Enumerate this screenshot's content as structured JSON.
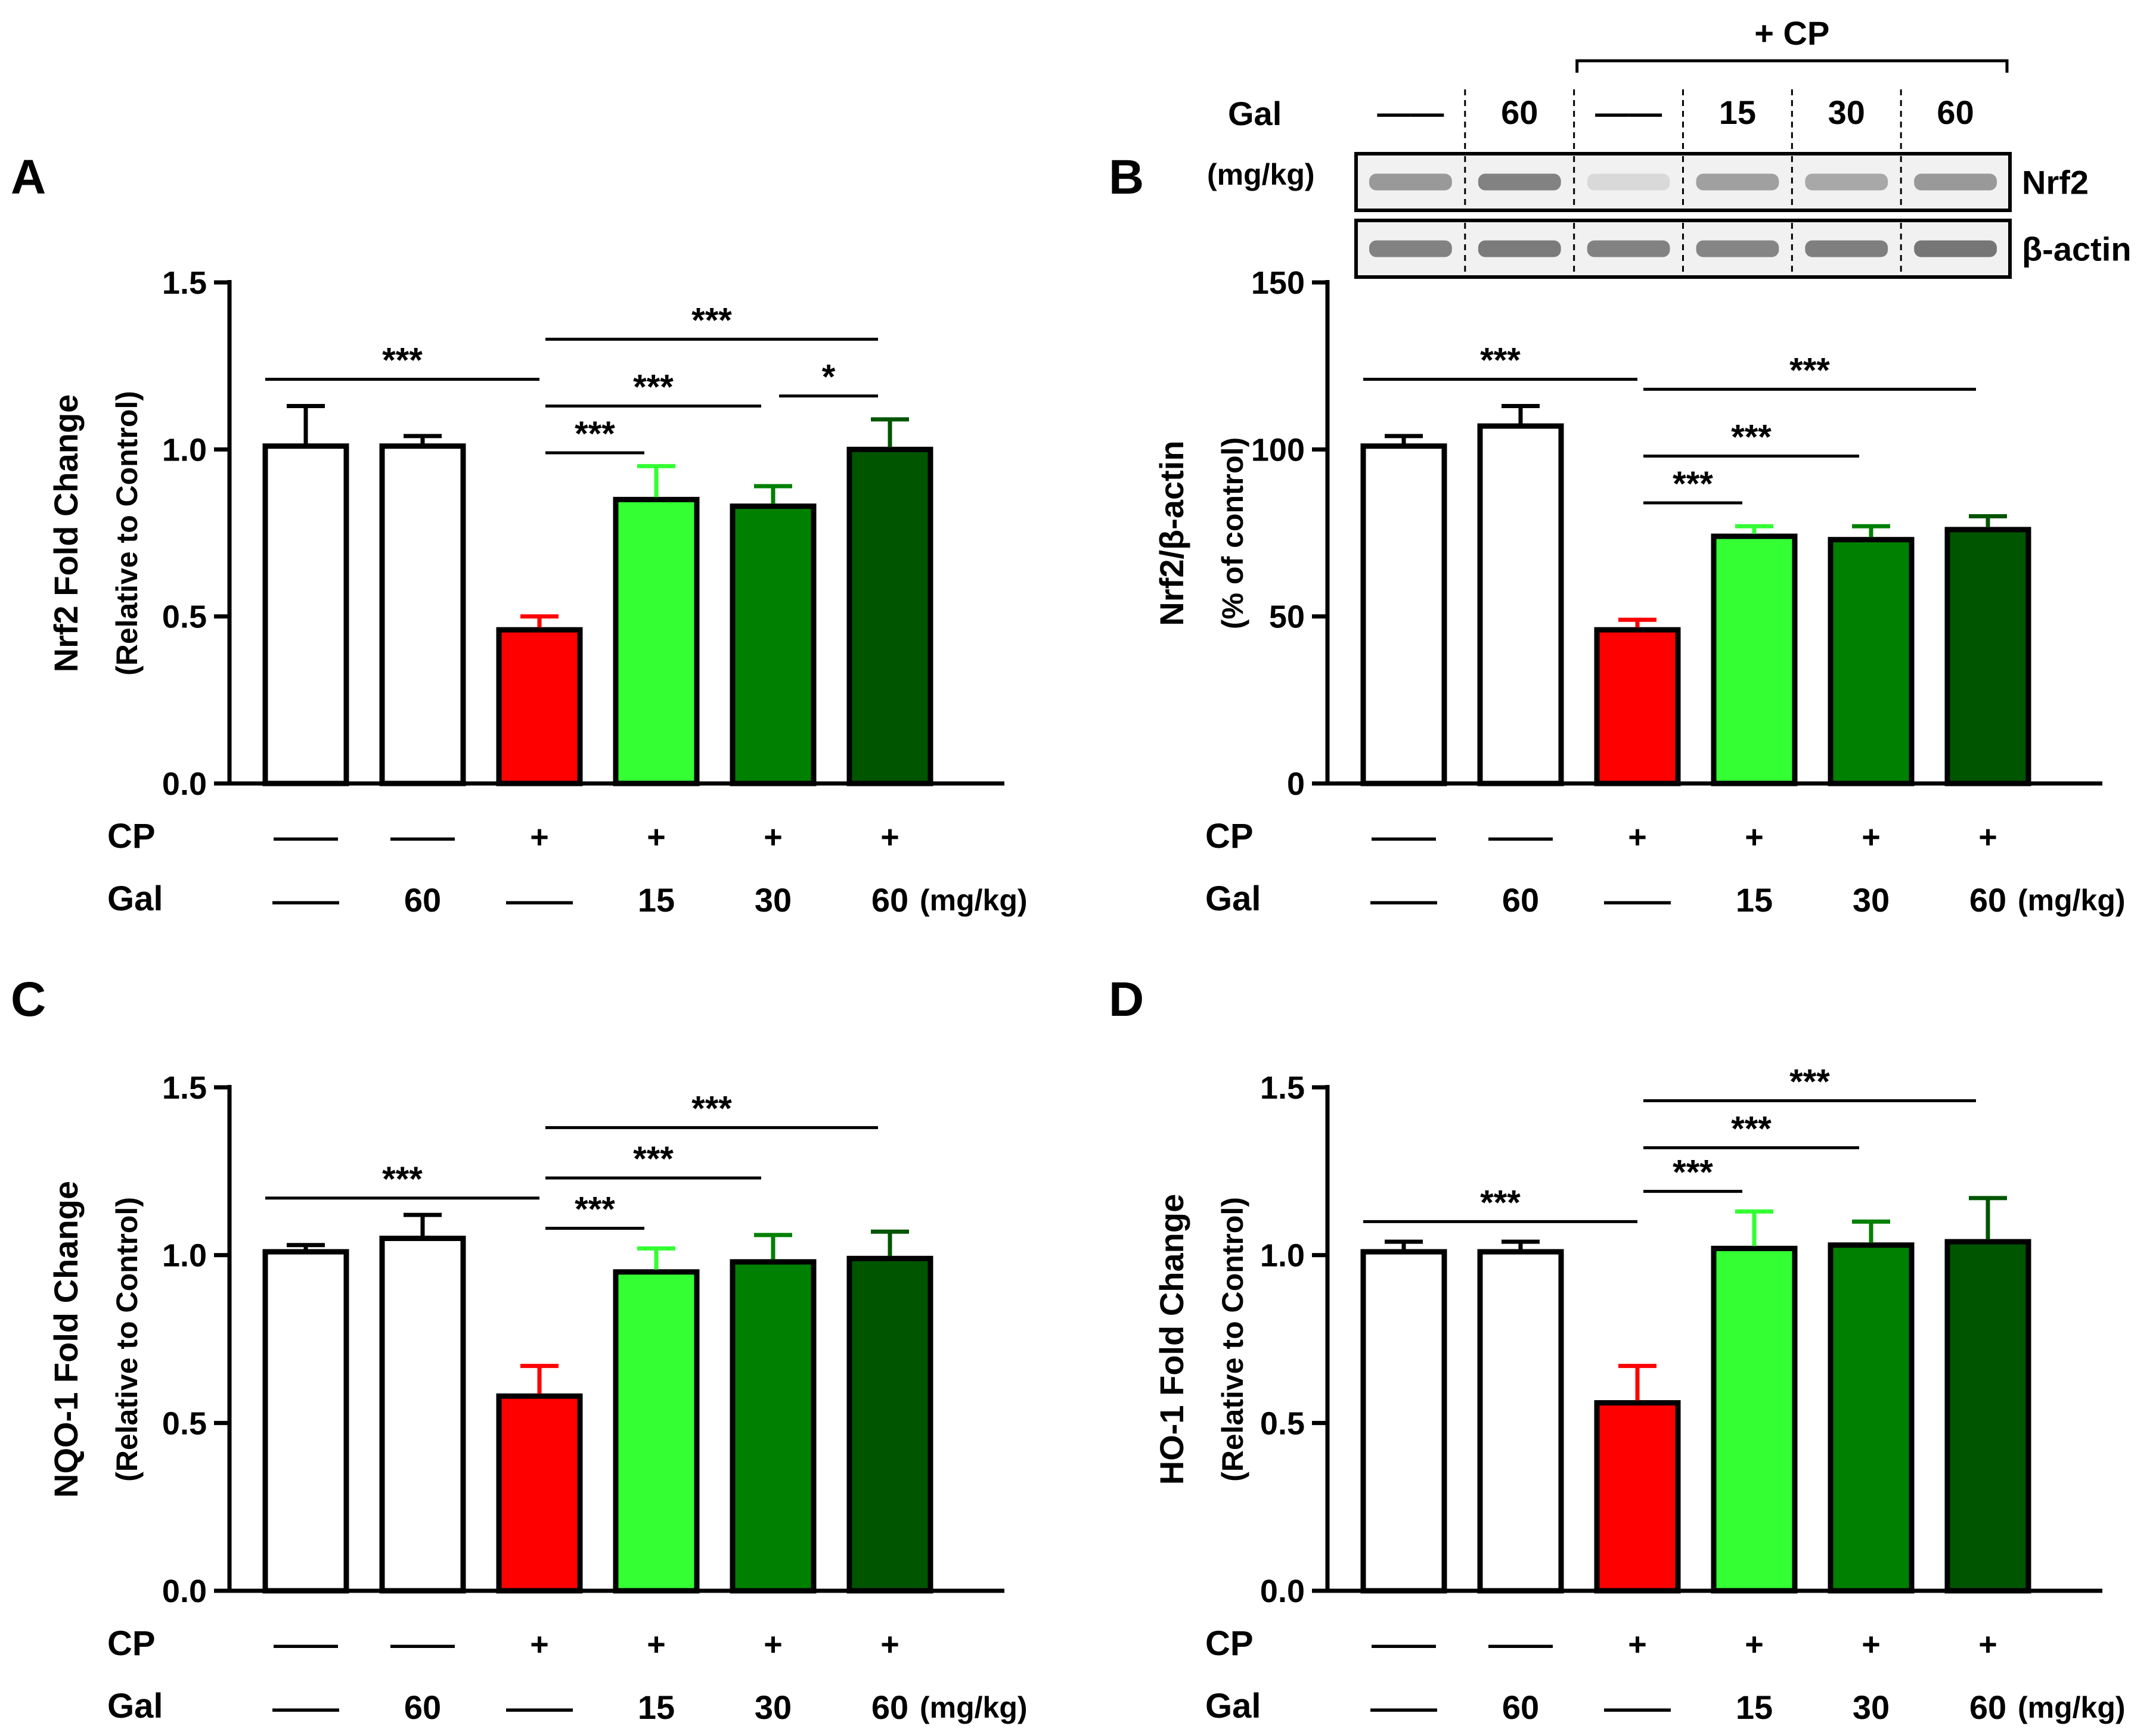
{
  "row_labels": {
    "cp": "CP",
    "gal": "Gal",
    "unit": "(mg/kg)",
    "dash": "——"
  },
  "group_values": {
    "cp": [
      "——",
      "——",
      "+",
      "+",
      "+",
      "+"
    ],
    "gal": [
      "——",
      "60",
      "——",
      "15",
      "30",
      "60"
    ]
  },
  "colors": {
    "control": "#ffffff",
    "cp": "#ff0000",
    "gal15": "#33ff33",
    "gal30": "#008000",
    "gal60": "#005500",
    "error_cp": "#ff0000"
  },
  "blot": {
    "header": "+ CP",
    "gal_label": "Gal",
    "unit_label": "(mg/kg)",
    "lanes": [
      "——",
      "60",
      "——",
      "15",
      "30",
      "60"
    ],
    "bands": [
      "Nrf2",
      "β-actin"
    ]
  },
  "chart_data": [
    {
      "panel": "A",
      "type": "bar",
      "ylabel": "Nrf2 Fold Change",
      "ylabel2": "(Relative to Control)",
      "ylim": [
        0,
        1.5
      ],
      "yticks": [
        "0.0",
        "0.5",
        "1.0",
        "1.5"
      ],
      "categories": [
        "Control",
        "Gal 60",
        "CP",
        "CP + Gal 15",
        "CP + Gal 30",
        "CP + Gal 60"
      ],
      "values": [
        1.01,
        1.01,
        0.46,
        0.85,
        0.83,
        1.0
      ],
      "errors": [
        0.12,
        0.03,
        0.04,
        0.1,
        0.06,
        0.09
      ],
      "significance": [
        {
          "from": 0,
          "to": 2,
          "label": "***",
          "y": 1.21
        },
        {
          "from": 2,
          "to": 3,
          "label": "***",
          "y": 0.99
        },
        {
          "from": 2,
          "to": 4,
          "label": "***",
          "y": 1.13
        },
        {
          "from": 4,
          "to": 5,
          "label": "*",
          "y": 1.16
        },
        {
          "from": 2,
          "to": 5,
          "label": "***",
          "y": 1.33
        }
      ]
    },
    {
      "panel": "B",
      "type": "bar",
      "ylabel": "Nrf2/β-actin",
      "ylabel2": "(% of control)",
      "ylim": [
        0,
        150
      ],
      "yticks": [
        "0",
        "50",
        "100",
        "150"
      ],
      "categories": [
        "Control",
        "Gal 60",
        "CP",
        "CP + Gal 15",
        "CP + Gal 30",
        "CP + Gal 60"
      ],
      "values": [
        101,
        107,
        46,
        74,
        73,
        76
      ],
      "errors": [
        3,
        6,
        3,
        3,
        4,
        4
      ],
      "significance": [
        {
          "from": 0,
          "to": 2,
          "label": "***",
          "y": 121
        },
        {
          "from": 2,
          "to": 3,
          "label": "***",
          "y": 84
        },
        {
          "from": 2,
          "to": 4,
          "label": "***",
          "y": 98
        },
        {
          "from": 2,
          "to": 5,
          "label": "***",
          "y": 118
        }
      ]
    },
    {
      "panel": "C",
      "type": "bar",
      "ylabel": "NQO-1 Fold Change",
      "ylabel2": "(Relative to Control)",
      "ylim": [
        0,
        1.5
      ],
      "yticks": [
        "0.0",
        "0.5",
        "1.0",
        "1.5"
      ],
      "categories": [
        "Control",
        "Gal 60",
        "CP",
        "CP + Gal 15",
        "CP + Gal 30",
        "CP + Gal 60"
      ],
      "values": [
        1.01,
        1.05,
        0.58,
        0.95,
        0.98,
        0.99
      ],
      "errors": [
        0.02,
        0.07,
        0.09,
        0.07,
        0.08,
        0.08
      ],
      "significance": [
        {
          "from": 0,
          "to": 2,
          "label": "***",
          "y": 1.17
        },
        {
          "from": 2,
          "to": 3,
          "label": "***",
          "y": 1.08
        },
        {
          "from": 2,
          "to": 4,
          "label": "***",
          "y": 1.23
        },
        {
          "from": 2,
          "to": 5,
          "label": "***",
          "y": 1.38
        }
      ]
    },
    {
      "panel": "D",
      "type": "bar",
      "ylabel": "HO-1 Fold Change",
      "ylabel2": "(Relative to Control)",
      "ylim": [
        0,
        1.5
      ],
      "yticks": [
        "0.0",
        "0.5",
        "1.0",
        "1.5"
      ],
      "categories": [
        "Control",
        "Gal 60",
        "CP",
        "CP + Gal 15",
        "CP + Gal 30",
        "CP + Gal 60"
      ],
      "values": [
        1.01,
        1.01,
        0.56,
        1.02,
        1.03,
        1.04
      ],
      "errors": [
        0.03,
        0.03,
        0.11,
        0.11,
        0.07,
        0.13
      ],
      "significance": [
        {
          "from": 0,
          "to": 2,
          "label": "***",
          "y": 1.1
        },
        {
          "from": 2,
          "to": 3,
          "label": "***",
          "y": 1.19
        },
        {
          "from": 2,
          "to": 4,
          "label": "***",
          "y": 1.32
        },
        {
          "from": 2,
          "to": 5,
          "label": "***",
          "y": 1.46
        }
      ]
    }
  ]
}
